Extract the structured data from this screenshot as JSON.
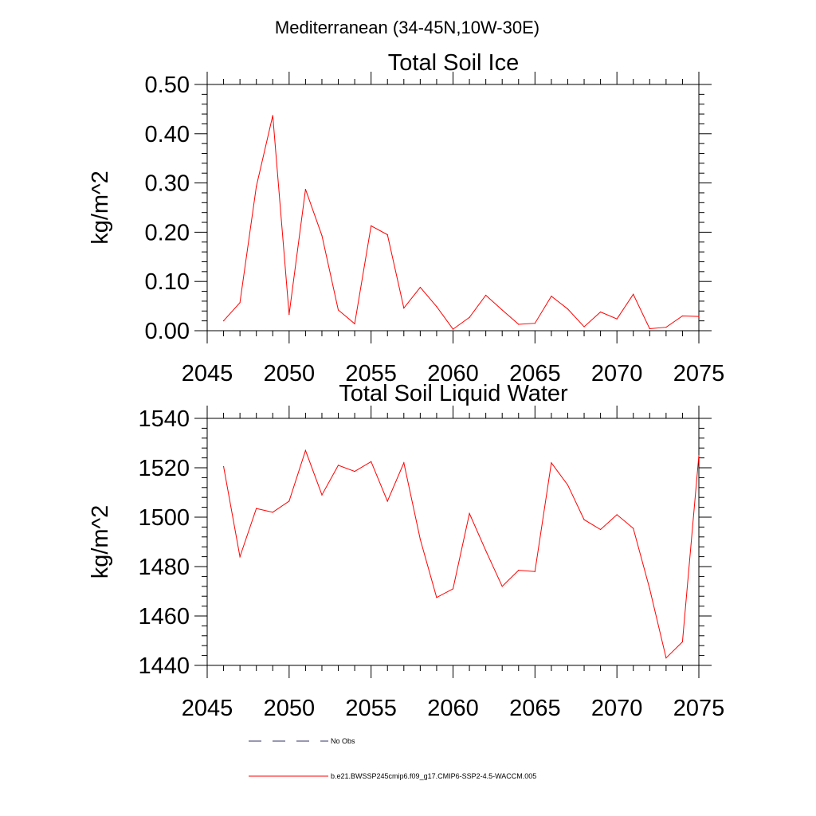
{
  "figure_title": "Mediterranean (34-45N,10W-30E)",
  "chart_data": [
    {
      "type": "line",
      "title": "Total Soil Ice",
      "xlabel": "",
      "ylabel": "kg/m^2",
      "xlim": [
        2045,
        2075
      ],
      "ylim": [
        0,
        0.5
      ],
      "xticks": [
        2045,
        2050,
        2055,
        2060,
        2065,
        2070,
        2075
      ],
      "xtick_labels": [
        "2045",
        "2050",
        "2055",
        "2060",
        "2065",
        "2070",
        "2075"
      ],
      "yticks": [
        0,
        0.1,
        0.2,
        0.3,
        0.4,
        0.5
      ],
      "ytick_labels": [
        "0.00",
        "0.10",
        "0.20",
        "0.30",
        "0.40",
        "0.50"
      ],
      "series": [
        {
          "name": "b.e21.BWSSP245cmip6.f09_g17.CMIP6-SSP2-4.5-WACCM.005",
          "color": "#ff0000",
          "x": [
            2046,
            2047,
            2048,
            2049,
            2050,
            2051,
            2052,
            2053,
            2054,
            2055,
            2056,
            2057,
            2058,
            2059,
            2060,
            2061,
            2062,
            2063,
            2064,
            2065,
            2066,
            2067,
            2068,
            2069,
            2070,
            2071,
            2072,
            2073,
            2074,
            2075
          ],
          "y": [
            0.02,
            0.057,
            0.293,
            0.437,
            0.033,
            0.287,
            0.193,
            0.042,
            0.014,
            0.213,
            0.195,
            0.046,
            0.088,
            0.049,
            0.003,
            0.027,
            0.072,
            0.042,
            0.013,
            0.015,
            0.07,
            0.044,
            0.008,
            0.038,
            0.024,
            0.074,
            0.004,
            0.007,
            0.03,
            0.029
          ]
        }
      ]
    },
    {
      "type": "line",
      "title": "Total Soil Liquid Water",
      "xlabel": "",
      "ylabel": "kg/m^2",
      "xlim": [
        2045,
        2075
      ],
      "ylim": [
        1440,
        1540
      ],
      "xticks": [
        2045,
        2050,
        2055,
        2060,
        2065,
        2070,
        2075
      ],
      "xtick_labels": [
        "2045",
        "2050",
        "2055",
        "2060",
        "2065",
        "2070",
        "2075"
      ],
      "yticks": [
        1440,
        1460,
        1480,
        1500,
        1520,
        1540
      ],
      "ytick_labels": [
        "1440",
        "1460",
        "1480",
        "1500",
        "1520",
        "1540"
      ],
      "series": [
        {
          "name": "b.e21.BWSSP245cmip6.f09_g17.CMIP6-SSP2-4.5-WACCM.005",
          "color": "#ff0000",
          "x": [
            2046,
            2047,
            2048,
            2049,
            2050,
            2051,
            2052,
            2053,
            2054,
            2055,
            2056,
            2057,
            2058,
            2059,
            2060,
            2061,
            2062,
            2063,
            2064,
            2065,
            2066,
            2067,
            2068,
            2069,
            2070,
            2071,
            2072,
            2073,
            2074,
            2075
          ],
          "y": [
            1520.5,
            1484,
            1503.5,
            1502,
            1506.5,
            1527,
            1509,
            1521,
            1518.5,
            1522.5,
            1506.5,
            1522,
            1491,
            1467.5,
            1471,
            1501.5,
            1486.5,
            1472,
            1478.5,
            1478,
            1522,
            1513,
            1499,
            1495,
            1501,
            1495.5,
            1471,
            1443,
            1449.5,
            1525
          ]
        }
      ]
    }
  ],
  "legend": [
    {
      "label": "No Obs",
      "style": "dashed",
      "color": "#303060"
    },
    {
      "label": "b.e21.BWSSP245cmip6.f09_g17.CMIP6-SSP2-4.5-WACCM.005",
      "style": "solid",
      "color": "#ff0000"
    }
  ]
}
